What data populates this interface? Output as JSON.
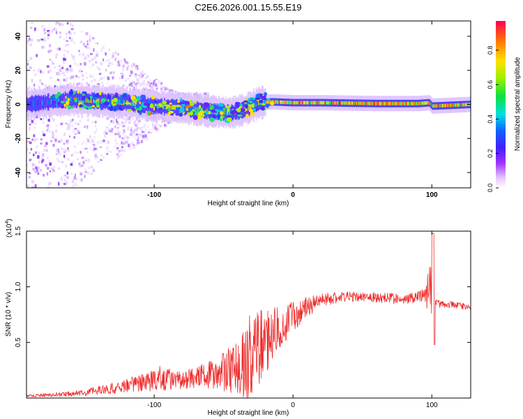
{
  "figure_title": "C2E6.2026.001.15.55.E19",
  "colors": {
    "snr_line": "#ee2a2a",
    "axis": "#000000",
    "band_core": "#20dd30",
    "band_halo": "#c9a6f0"
  },
  "chart_data": [
    {
      "type": "heatmap",
      "title": "C2E6.2026.001.15.55.E19",
      "xlabel": "Height of straight line (km)",
      "ylabel": "Frequency (Hz)",
      "xlim": [
        -192,
        128
      ],
      "ylim": [
        -49,
        49
      ],
      "xticks": [
        -100,
        0,
        100
      ],
      "yticks": [
        -40,
        -20,
        0,
        20,
        40
      ],
      "colorbar": {
        "label": "Normalized spectral amplitude",
        "range": [
          0,
          0.97
        ],
        "ticks": [
          0.0,
          0.2,
          0.4,
          0.6,
          0.8
        ],
        "tick_labels": [
          "0.0",
          "0.2",
          "0.4",
          "0.6",
          "0.8"
        ]
      },
      "ridge_center_hz": {
        "x": [
          -192,
          -160,
          -140,
          -120,
          -100,
          -80,
          -60,
          -45,
          -35,
          -25,
          -15,
          0,
          20,
          60,
          90,
          98,
          100,
          128
        ],
        "y": [
          0,
          3,
          2,
          1,
          -1,
          -2,
          -4,
          -5,
          -3,
          1,
          1.5,
          1,
          1,
          0.5,
          0.5,
          1,
          -1,
          0
        ]
      }
    },
    {
      "type": "line",
      "title": "",
      "xlabel": "Height of straight line (km)",
      "ylabel": "SNR (10 * v/v)",
      "y_multiplier": "(x10^4)",
      "y_multiplier_base": "(x10",
      "y_multiplier_exp": "4",
      "xlim": [
        -192,
        128
      ],
      "ylim": [
        0,
        1.5
      ],
      "xticks": [
        -100,
        0,
        100
      ],
      "yticks": [
        0.5,
        1.0,
        1.5
      ],
      "ytick_labels": [
        "0.5",
        "1.0",
        "1.5"
      ],
      "series": [
        {
          "name": "SNR",
          "x": [
            -192,
            -170,
            -150,
            -130,
            -110,
            -95,
            -85,
            -70,
            -55,
            -40,
            -32,
            -25,
            -20,
            -15,
            -8,
            0,
            10,
            20,
            35,
            50,
            65,
            80,
            95,
            99,
            101,
            103,
            108,
            115,
            128
          ],
          "y": [
            0.02,
            0.03,
            0.05,
            0.09,
            0.14,
            0.18,
            0.16,
            0.18,
            0.22,
            0.27,
            0.35,
            0.45,
            0.52,
            0.58,
            0.65,
            0.73,
            0.82,
            0.88,
            0.91,
            0.91,
            0.9,
            0.89,
            0.92,
            1.0,
            0.6,
            0.85,
            0.84,
            0.84,
            0.82
          ],
          "noise": [
            0.01,
            0.02,
            0.03,
            0.05,
            0.08,
            0.12,
            0.08,
            0.1,
            0.14,
            0.25,
            0.38,
            0.38,
            0.32,
            0.25,
            0.18,
            0.14,
            0.1,
            0.06,
            0.05,
            0.04,
            0.05,
            0.05,
            0.06,
            0.3,
            0.25,
            0.04,
            0.03,
            0.03,
            0.03
          ]
        }
      ]
    }
  ]
}
